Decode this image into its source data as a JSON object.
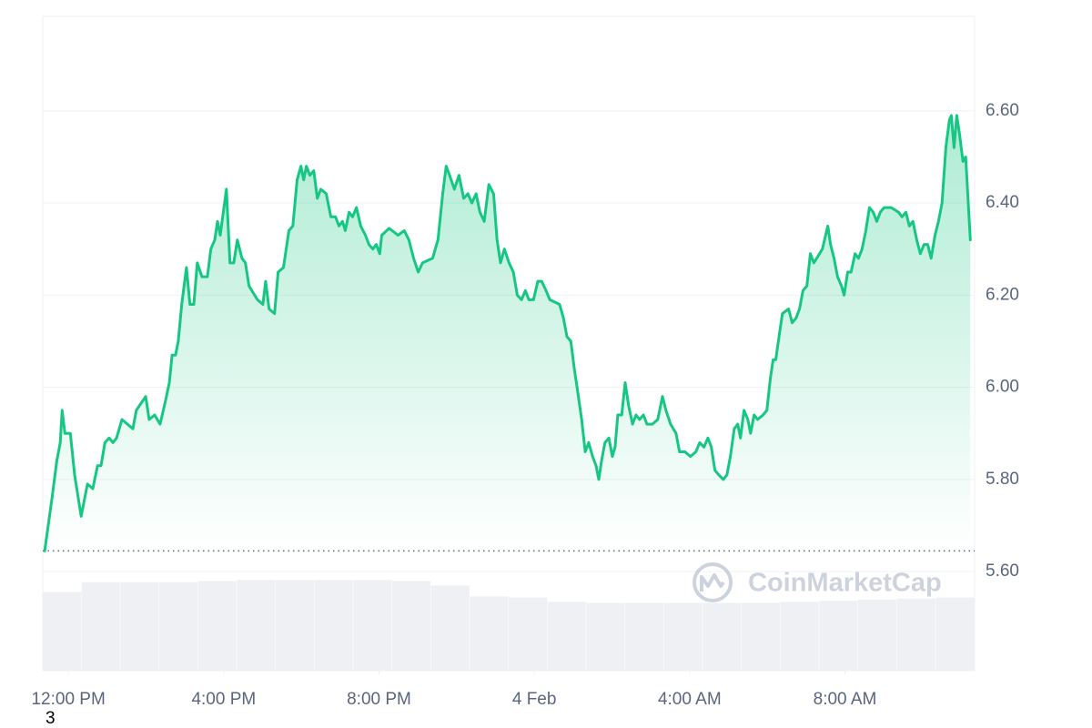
{
  "chart_data": {
    "type": "line",
    "color": "#16c784",
    "watermark": "CoinMarketCap",
    "footnote": "3",
    "reference_line": 5.645,
    "grid": true,
    "ylim": [
      5.385,
      6.805
    ],
    "yticks": [
      {
        "value": 5.6,
        "label": "5.60"
      },
      {
        "value": 5.8,
        "label": "5.80"
      },
      {
        "value": 6.0,
        "label": "6.00"
      },
      {
        "value": 6.2,
        "label": "6.20"
      },
      {
        "value": 6.4,
        "label": "6.40"
      },
      {
        "value": 6.6,
        "label": "6.60"
      }
    ],
    "xlim": [
      -0.66,
      23.34
    ],
    "xticks": [
      {
        "value": 0,
        "label": "12:00 PM"
      },
      {
        "value": 4,
        "label": "4:00 PM"
      },
      {
        "value": 8,
        "label": "8:00 PM"
      },
      {
        "value": 12,
        "label": "4 Feb"
      },
      {
        "value": 16,
        "label": "4:00 AM"
      },
      {
        "value": 20,
        "label": "8:00 AM"
      }
    ],
    "series": [
      {
        "color": "#16c784",
        "x": [
          -0.61,
          -0.42,
          -0.3,
          -0.21,
          -0.16,
          -0.09,
          0.05,
          0.16,
          0.33,
          0.49,
          0.63,
          0.75,
          0.84,
          0.94,
          1.05,
          1.15,
          1.24,
          1.38,
          1.66,
          1.75,
          1.99,
          2.08,
          2.22,
          2.36,
          2.5,
          2.6,
          2.67,
          2.76,
          2.83,
          2.92,
          3.04,
          3.13,
          3.23,
          3.32,
          3.44,
          3.58,
          3.67,
          3.77,
          3.84,
          3.91,
          4.07,
          4.16,
          4.26,
          4.35,
          4.47,
          4.56,
          4.65,
          4.87,
          5.01,
          5.08,
          5.17,
          5.31,
          5.4,
          5.54,
          5.68,
          5.78,
          5.89,
          5.99,
          6.06,
          6.13,
          6.22,
          6.32,
          6.41,
          6.5,
          6.64,
          6.76,
          6.88,
          6.97,
          7.06,
          7.13,
          7.23,
          7.32,
          7.42,
          7.53,
          7.65,
          7.74,
          7.84,
          7.93,
          8.02,
          8.07,
          8.26,
          8.49,
          8.65,
          8.77,
          8.89,
          9.01,
          9.12,
          9.38,
          9.52,
          9.64,
          9.73,
          9.82,
          9.94,
          10.06,
          10.18,
          10.29,
          10.39,
          10.5,
          10.6,
          10.71,
          10.83,
          10.95,
          11.04,
          11.13,
          11.23,
          11.35,
          11.46,
          11.56,
          11.67,
          11.77,
          11.86,
          11.98,
          12.09,
          12.19,
          12.3,
          12.4,
          12.65,
          12.75,
          12.84,
          12.94,
          13.03,
          13.12,
          13.22,
          13.31,
          13.4,
          13.5,
          13.59,
          13.66,
          13.73,
          13.82,
          13.92,
          14.01,
          14.08,
          14.15,
          14.25,
          14.34,
          14.43,
          14.53,
          14.62,
          14.71,
          14.81,
          14.9,
          15.04,
          15.18,
          15.3,
          15.39,
          15.51,
          15.65,
          15.74,
          15.88,
          16.02,
          16.16,
          16.26,
          16.37,
          16.47,
          16.56,
          16.65,
          16.75,
          16.87,
          16.96,
          17.05,
          17.15,
          17.24,
          17.31,
          17.4,
          17.5,
          17.57,
          17.66,
          17.75,
          17.89,
          17.99,
          18.08,
          18.15,
          18.22,
          18.32,
          18.39,
          18.55,
          18.64,
          18.74,
          18.83,
          18.92,
          19.02,
          19.11,
          19.2,
          19.42,
          19.56,
          19.63,
          19.72,
          19.81,
          19.91,
          19.98,
          20.07,
          20.16,
          20.26,
          20.35,
          20.44,
          20.54,
          20.63,
          20.73,
          20.82,
          20.91,
          21.01,
          21.19,
          21.38,
          21.47,
          21.57,
          21.66,
          21.75,
          21.85,
          21.94,
          22.04,
          22.13,
          22.22,
          22.32,
          22.41,
          22.5,
          22.6,
          22.69,
          22.74,
          22.81,
          22.88,
          22.95,
          23.04,
          23.11,
          23.23
        ],
        "values": [
          5.645,
          5.76,
          5.84,
          5.88,
          5.95,
          5.9,
          5.9,
          5.81,
          5.72,
          5.79,
          5.78,
          5.83,
          5.83,
          5.88,
          5.89,
          5.88,
          5.89,
          5.93,
          5.91,
          5.95,
          5.98,
          5.93,
          5.94,
          5.92,
          5.97,
          6.01,
          6.07,
          6.07,
          6.1,
          6.18,
          6.26,
          6.18,
          6.18,
          6.27,
          6.24,
          6.24,
          6.3,
          6.32,
          6.36,
          6.33,
          6.43,
          6.27,
          6.27,
          6.32,
          6.28,
          6.27,
          6.22,
          6.19,
          6.18,
          6.23,
          6.17,
          6.16,
          6.25,
          6.26,
          6.34,
          6.35,
          6.45,
          6.48,
          6.45,
          6.48,
          6.46,
          6.47,
          6.41,
          6.43,
          6.42,
          6.37,
          6.37,
          6.35,
          6.36,
          6.34,
          6.38,
          6.37,
          6.39,
          6.35,
          6.33,
          6.31,
          6.3,
          6.31,
          6.29,
          6.33,
          6.345,
          6.33,
          6.34,
          6.32,
          6.28,
          6.25,
          6.27,
          6.28,
          6.32,
          6.42,
          6.48,
          6.46,
          6.43,
          6.46,
          6.41,
          6.42,
          6.4,
          6.42,
          6.38,
          6.36,
          6.44,
          6.42,
          6.32,
          6.27,
          6.3,
          6.27,
          6.25,
          6.2,
          6.19,
          6.21,
          6.19,
          6.19,
          6.23,
          6.23,
          6.21,
          6.19,
          6.18,
          6.15,
          6.11,
          6.1,
          6.04,
          5.99,
          5.93,
          5.86,
          5.88,
          5.85,
          5.83,
          5.8,
          5.84,
          5.88,
          5.89,
          5.85,
          5.87,
          5.94,
          5.94,
          6.01,
          5.96,
          5.92,
          5.94,
          5.93,
          5.94,
          5.92,
          5.92,
          5.93,
          5.98,
          5.95,
          5.92,
          5.9,
          5.86,
          5.86,
          5.85,
          5.86,
          5.88,
          5.87,
          5.89,
          5.87,
          5.82,
          5.81,
          5.8,
          5.81,
          5.85,
          5.91,
          5.92,
          5.89,
          5.95,
          5.93,
          5.9,
          5.94,
          5.93,
          5.94,
          5.95,
          6.02,
          6.06,
          6.06,
          6.12,
          6.16,
          6.17,
          6.14,
          6.15,
          6.17,
          6.21,
          6.22,
          6.29,
          6.27,
          6.3,
          6.35,
          6.31,
          6.28,
          6.24,
          6.22,
          6.2,
          6.25,
          6.25,
          6.29,
          6.28,
          6.3,
          6.34,
          6.39,
          6.38,
          6.36,
          6.38,
          6.39,
          6.39,
          6.38,
          6.37,
          6.38,
          6.35,
          6.36,
          6.32,
          6.29,
          6.31,
          6.31,
          6.28,
          6.33,
          6.36,
          6.4,
          6.52,
          6.58,
          6.59,
          6.52,
          6.59,
          6.55,
          6.49,
          6.5,
          6.32
        ]
      }
    ],
    "volume": {
      "color": "#eef0f4",
      "ylim": [
        0,
        100
      ],
      "x": [
        -0.66,
        0.34,
        1.34,
        2.34,
        3.34,
        4.34,
        5.34,
        6.34,
        7.34,
        8.34,
        9.34,
        10.34,
        11.34,
        12.34,
        13.34,
        14.34,
        15.34,
        16.34,
        17.34,
        18.34,
        19.34,
        20.34,
        21.34,
        22.34
      ],
      "values": [
        72,
        81,
        81,
        81,
        82,
        83,
        83,
        83,
        83,
        82,
        78,
        68,
        67,
        63,
        62,
        62,
        62,
        62,
        62,
        63,
        64,
        65,
        66,
        67
      ]
    }
  }
}
